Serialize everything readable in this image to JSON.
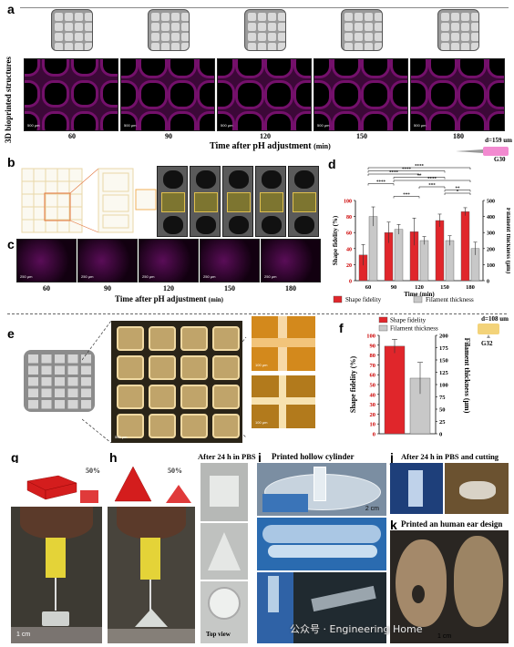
{
  "panel_letters": {
    "a": "a",
    "b": "b",
    "c": "c",
    "d": "d",
    "e": "e",
    "f": "f",
    "g": "g",
    "h": "h",
    "i": "i",
    "j": "j",
    "k": "k"
  },
  "panel_a": {
    "ylabel": "3D bioprinted structures",
    "times": [
      "60",
      "90",
      "120",
      "150",
      "180"
    ],
    "xlabel": "Time after pH adjustment",
    "xunit": "(min)",
    "scalebar": "500 μm"
  },
  "panel_c": {
    "times": [
      "60",
      "90",
      "120",
      "150",
      "180"
    ],
    "xlabel": "Time after pH adjustment",
    "xunit": "(min)",
    "scalebar": "250 μm"
  },
  "needle_d": {
    "label": "d=159 um",
    "gauge": "G30"
  },
  "needle_f": {
    "label": "d=108 um",
    "gauge": "G32"
  },
  "panel_e": {
    "scalebar_main": "500 μm",
    "scalebar_top": "100 μm",
    "scalebar_bottom": "100 μm"
  },
  "panel_g": {
    "percent": "50%",
    "scalebar": "1 cm"
  },
  "panel_h": {
    "percent": "50%",
    "after_label": "After 24 h in PBS",
    "top_view": "Top view"
  },
  "panel_i": {
    "title": "Printed hollow cylinder",
    "scalebar": "2 cm"
  },
  "panel_j": {
    "title": "After 24 h in PBS and cutting"
  },
  "panel_k": {
    "title": "Printed an human ear design",
    "scalebar": "1 cm"
  },
  "watermark": "公众号 · Engineering Home",
  "chart_data": [
    {
      "id": "d",
      "type": "bar",
      "categories": [
        "60",
        "90",
        "120",
        "150",
        "180"
      ],
      "xlabel": "Time (min)",
      "ylabel_left": "Shape fidelity (%)",
      "ylabel_right": "Filament thickness (μm)",
      "ylim_left": [
        0,
        100
      ],
      "ylim_right": [
        0,
        500
      ],
      "yticks_left": [
        "0",
        "10",
        "20",
        "30",
        "40",
        "50",
        "60",
        "70",
        "80",
        "90",
        "100"
      ],
      "yticks_right": [
        "0",
        "100",
        "200",
        "300",
        "400",
        "500"
      ],
      "series": [
        {
          "name": "Shape fidelity",
          "axis": "left",
          "color": "#e0262b",
          "values": [
            32,
            60,
            61,
            75,
            86
          ],
          "errors": [
            13,
            13,
            17,
            8,
            5
          ]
        },
        {
          "name": "Filament thickness",
          "axis": "right",
          "color": "#c8c8c8",
          "values": [
            400,
            320,
            250,
            250,
            200
          ],
          "errors": [
            60,
            30,
            25,
            30,
            40
          ]
        }
      ],
      "significance": [
        {
          "label": "****",
          "from": 0,
          "to": 4
        },
        {
          "label": "****",
          "from": 0,
          "to": 3
        },
        {
          "label": "****",
          "from": 0,
          "to": 2
        },
        {
          "label": "**",
          "from": 1,
          "to": 3
        },
        {
          "label": "****",
          "from": 1,
          "to": 4
        },
        {
          "label": "****",
          "from": 0,
          "to": 1
        },
        {
          "label": "***",
          "from": 2,
          "to": 3
        },
        {
          "label": "**",
          "from": 3,
          "to": 4
        },
        {
          "label": "*",
          "from": 3,
          "to": 4
        },
        {
          "label": "***",
          "from": 1,
          "to": 2
        }
      ],
      "legend": [
        "Shape fidelity",
        "Filament thickness"
      ]
    },
    {
      "id": "f",
      "type": "bar",
      "categories": [
        ""
      ],
      "ylabel_left": "Shape fidelity (%)",
      "ylabel_right": "Filament thickness (μm)",
      "ylim_left": [
        0,
        100
      ],
      "ylim_right": [
        0,
        200
      ],
      "yticks_left": [
        "0",
        "10",
        "20",
        "30",
        "40",
        "50",
        "60",
        "70",
        "80",
        "90",
        "100"
      ],
      "yticks_right": [
        "0",
        "25",
        "50",
        "75",
        "100",
        "125",
        "150",
        "175",
        "200"
      ],
      "series": [
        {
          "name": "Shape fidelity",
          "axis": "left",
          "color": "#e0262b",
          "values": [
            89
          ],
          "errors": [
            7
          ]
        },
        {
          "name": "Filament thickness",
          "axis": "right",
          "color": "#c8c8c8",
          "values": [
            113
          ],
          "errors": [
            32
          ]
        }
      ],
      "legend": [
        "Shape fidelity",
        "Filament thickness"
      ]
    }
  ]
}
